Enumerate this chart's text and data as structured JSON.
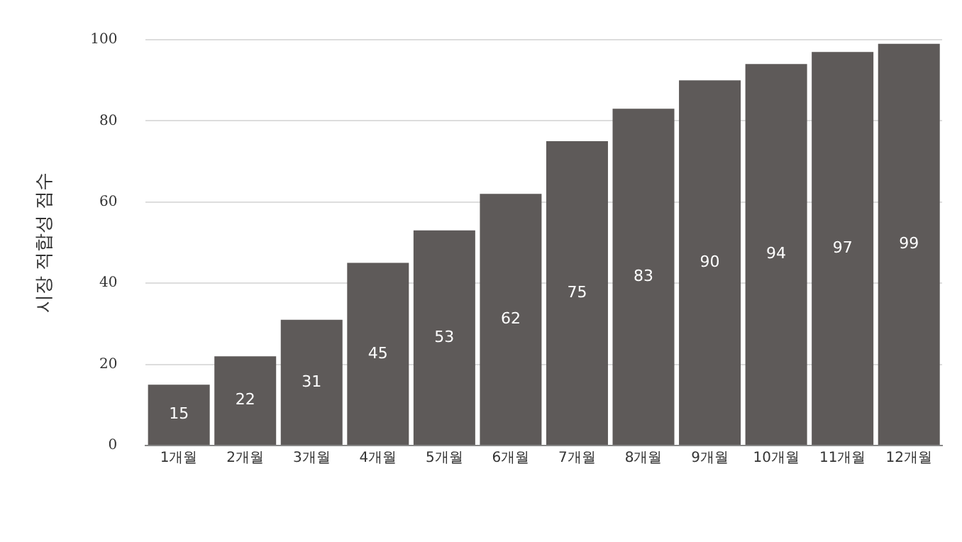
{
  "chart_data": {
    "type": "bar",
    "ylabel": "시장 적합성 점수",
    "categories": [
      "1개월",
      "2개월",
      "3개월",
      "4개월",
      "5개월",
      "6개월",
      "7개월",
      "8개월",
      "9개월",
      "10개월",
      "11개월",
      "12개월"
    ],
    "values": [
      15,
      22,
      31,
      45,
      53,
      62,
      75,
      83,
      90,
      94,
      97,
      99
    ],
    "color": "#5e5a59",
    "ylim": [
      0,
      100
    ],
    "yticks": [
      0,
      20,
      40,
      60,
      80,
      100
    ],
    "grid": "y",
    "data_labels": true
  }
}
